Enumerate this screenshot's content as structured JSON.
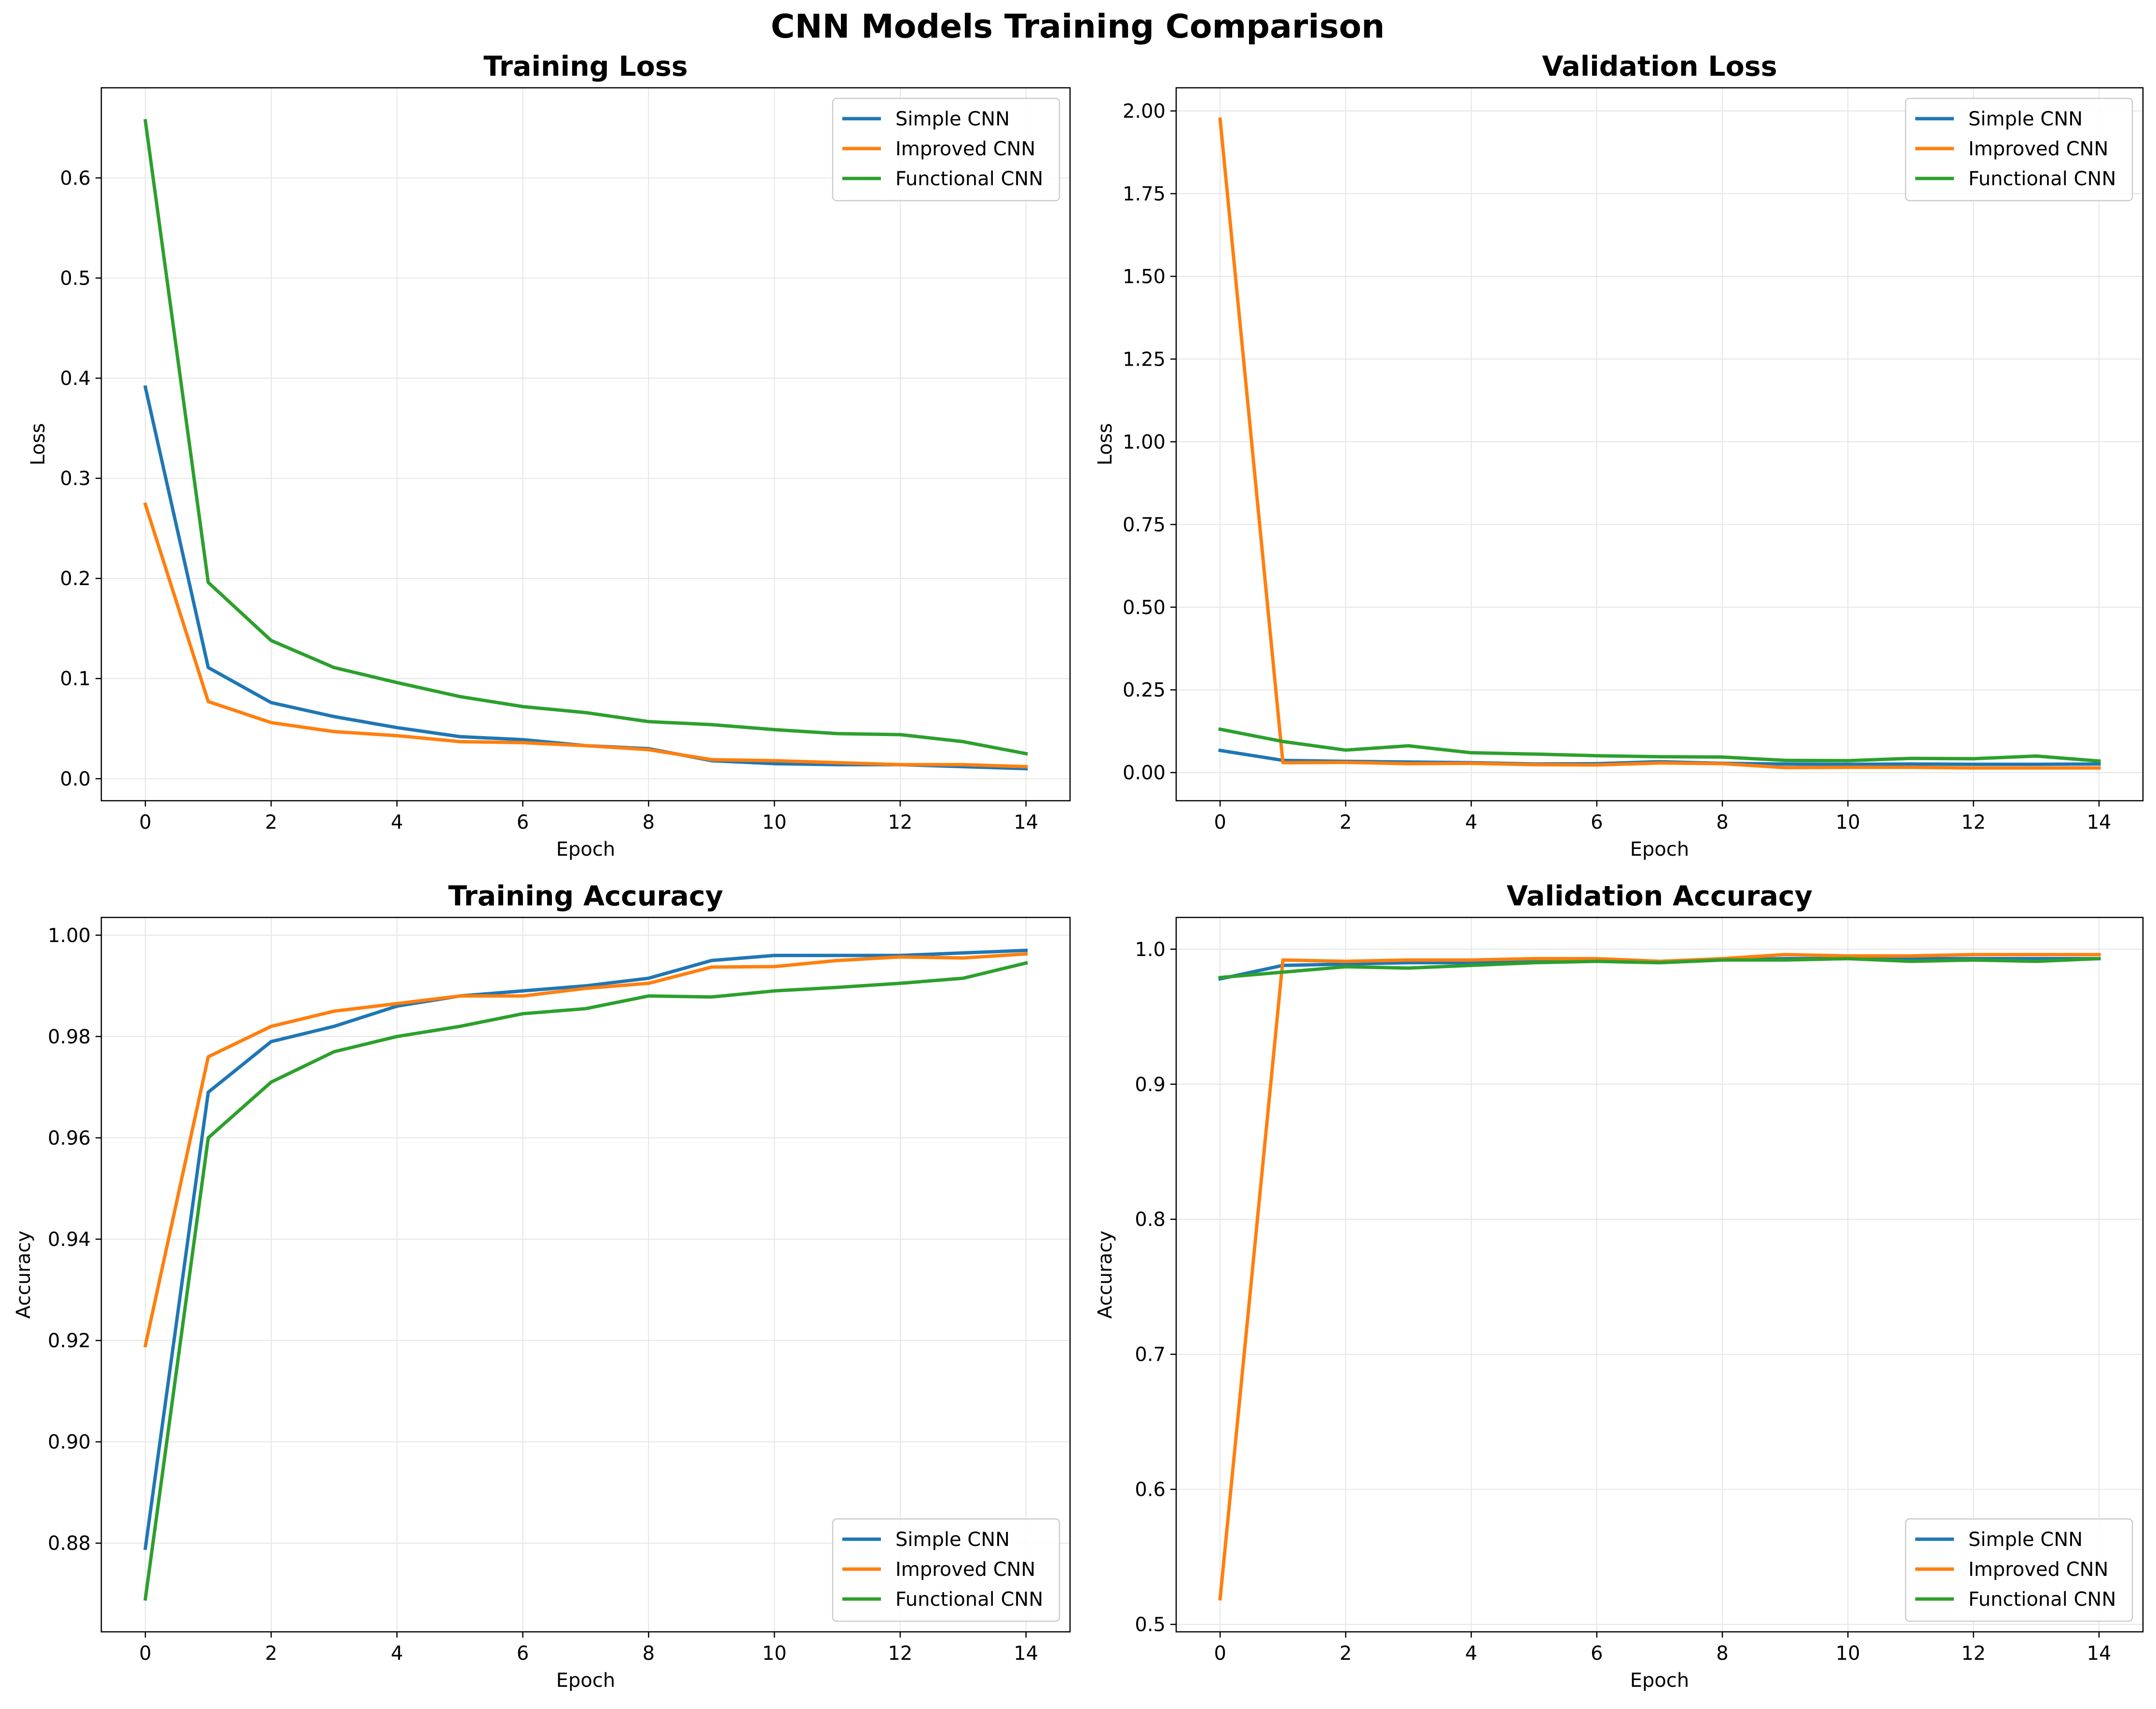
{
  "figure": {
    "title": "CNN Models Training Comparison"
  },
  "colors": {
    "simple": "#1f77b4",
    "improved": "#ff7f0e",
    "functional": "#2ca02c",
    "grid": "#e6e6e6"
  },
  "chart_data": [
    {
      "type": "line",
      "title": "Training Loss",
      "xlabel": "Epoch",
      "ylabel": "Loss",
      "xlim": [
        -0.7,
        14.7
      ],
      "ylim": [
        -0.022,
        0.69
      ],
      "xticks": [
        0,
        2,
        4,
        6,
        8,
        10,
        12,
        14
      ],
      "xtick_labels": [
        "0",
        "2",
        "4",
        "6",
        "8",
        "10",
        "12",
        "14"
      ],
      "yticks": [
        0.0,
        0.1,
        0.2,
        0.3,
        0.4,
        0.5,
        0.6
      ],
      "ytick_labels": [
        "0.0",
        "0.1",
        "0.2",
        "0.3",
        "0.4",
        "0.5",
        "0.6"
      ],
      "grid": true,
      "legend_position": "upper right",
      "x": [
        0,
        1,
        2,
        3,
        4,
        5,
        6,
        7,
        8,
        9,
        10,
        11,
        12,
        13,
        14
      ],
      "series": [
        {
          "name": "Simple CNN",
          "color": "#1f77b4",
          "values": [
            0.391,
            0.111,
            0.076,
            0.062,
            0.051,
            0.042,
            0.039,
            0.033,
            0.03,
            0.018,
            0.015,
            0.014,
            0.014,
            0.012,
            0.01
          ]
        },
        {
          "name": "Improved CNN",
          "color": "#ff7f0e",
          "values": [
            0.274,
            0.077,
            0.056,
            0.047,
            0.043,
            0.037,
            0.036,
            0.033,
            0.029,
            0.019,
            0.018,
            0.016,
            0.014,
            0.014,
            0.012
          ]
        },
        {
          "name": "Functional CNN",
          "color": "#2ca02c",
          "values": [
            0.657,
            0.196,
            0.138,
            0.111,
            0.096,
            0.082,
            0.072,
            0.066,
            0.057,
            0.054,
            0.049,
            0.045,
            0.044,
            0.037,
            0.025
          ]
        }
      ]
    },
    {
      "type": "line",
      "title": "Validation Loss",
      "xlabel": "Epoch",
      "ylabel": "Loss",
      "xlim": [
        -0.7,
        14.7
      ],
      "ylim": [
        -0.085,
        2.07
      ],
      "xticks": [
        0,
        2,
        4,
        6,
        8,
        10,
        12,
        14
      ],
      "xtick_labels": [
        "0",
        "2",
        "4",
        "6",
        "8",
        "10",
        "12",
        "14"
      ],
      "yticks": [
        0.0,
        0.25,
        0.5,
        0.75,
        1.0,
        1.25,
        1.5,
        1.75,
        2.0
      ],
      "ytick_labels": [
        "0.00",
        "0.25",
        "0.50",
        "0.75",
        "1.00",
        "1.25",
        "1.50",
        "1.75",
        "2.00"
      ],
      "grid": true,
      "legend_position": "upper right",
      "x": [
        0,
        1,
        2,
        3,
        4,
        5,
        6,
        7,
        8,
        9,
        10,
        11,
        12,
        13,
        14
      ],
      "series": [
        {
          "name": "Simple CNN",
          "color": "#1f77b4",
          "values": [
            0.067,
            0.037,
            0.034,
            0.032,
            0.03,
            0.026,
            0.027,
            0.033,
            0.028,
            0.026,
            0.025,
            0.026,
            0.025,
            0.025,
            0.026
          ]
        },
        {
          "name": "Improved CNN",
          "color": "#ff7f0e",
          "values": [
            1.975,
            0.03,
            0.031,
            0.027,
            0.028,
            0.024,
            0.023,
            0.029,
            0.027,
            0.015,
            0.016,
            0.016,
            0.014,
            0.014,
            0.014
          ]
        },
        {
          "name": "Functional CNN",
          "color": "#2ca02c",
          "values": [
            0.131,
            0.094,
            0.068,
            0.081,
            0.06,
            0.056,
            0.051,
            0.048,
            0.047,
            0.037,
            0.036,
            0.043,
            0.042,
            0.05,
            0.035
          ]
        }
      ]
    },
    {
      "type": "line",
      "title": "Training Accuracy",
      "xlabel": "Epoch",
      "ylabel": "Accuracy",
      "xlim": [
        -0.7,
        14.7
      ],
      "ylim": [
        0.8625,
        1.0035
      ],
      "xticks": [
        0,
        2,
        4,
        6,
        8,
        10,
        12,
        14
      ],
      "xtick_labels": [
        "0",
        "2",
        "4",
        "6",
        "8",
        "10",
        "12",
        "14"
      ],
      "yticks": [
        0.88,
        0.9,
        0.92,
        0.94,
        0.96,
        0.98,
        1.0
      ],
      "ytick_labels": [
        "0.88",
        "0.90",
        "0.92",
        "0.94",
        "0.96",
        "0.98",
        "1.00"
      ],
      "grid": true,
      "legend_position": "lower right",
      "x": [
        0,
        1,
        2,
        3,
        4,
        5,
        6,
        7,
        8,
        9,
        10,
        11,
        12,
        13,
        14
      ],
      "series": [
        {
          "name": "Simple CNN",
          "color": "#1f77b4",
          "values": [
            0.879,
            0.969,
            0.979,
            0.982,
            0.986,
            0.988,
            0.989,
            0.99,
            0.9915,
            0.995,
            0.996,
            0.996,
            0.996,
            0.9965,
            0.997
          ]
        },
        {
          "name": "Improved CNN",
          "color": "#ff7f0e",
          "values": [
            0.919,
            0.976,
            0.982,
            0.985,
            0.9865,
            0.988,
            0.988,
            0.9895,
            0.9905,
            0.9937,
            0.9938,
            0.995,
            0.9957,
            0.9955,
            0.9963
          ]
        },
        {
          "name": "Functional CNN",
          "color": "#2ca02c",
          "values": [
            0.869,
            0.96,
            0.971,
            0.977,
            0.98,
            0.982,
            0.9845,
            0.9855,
            0.988,
            0.9878,
            0.989,
            0.9897,
            0.9905,
            0.9915,
            0.9945
          ]
        }
      ]
    },
    {
      "type": "line",
      "title": "Validation Accuracy",
      "xlabel": "Epoch",
      "ylabel": "Accuracy",
      "xlim": [
        -0.7,
        14.7
      ],
      "ylim": [
        0.4945,
        1.0235
      ],
      "xticks": [
        0,
        2,
        4,
        6,
        8,
        10,
        12,
        14
      ],
      "xtick_labels": [
        "0",
        "2",
        "4",
        "6",
        "8",
        "10",
        "12",
        "14"
      ],
      "yticks": [
        0.5,
        0.6,
        0.7,
        0.8,
        0.9,
        1.0
      ],
      "ytick_labels": [
        "0.5",
        "0.6",
        "0.7",
        "0.8",
        "0.9",
        "1.0"
      ],
      "grid": true,
      "legend_position": "lower right",
      "x": [
        0,
        1,
        2,
        3,
        4,
        5,
        6,
        7,
        8,
        9,
        10,
        11,
        12,
        13,
        14
      ],
      "series": [
        {
          "name": "Simple CNN",
          "color": "#1f77b4",
          "values": [
            0.978,
            0.988,
            0.989,
            0.99,
            0.99,
            0.991,
            0.992,
            0.99,
            0.992,
            0.993,
            0.993,
            0.993,
            0.993,
            0.993,
            0.993
          ]
        },
        {
          "name": "Improved CNN",
          "color": "#ff7f0e",
          "values": [
            0.519,
            0.992,
            0.991,
            0.992,
            0.992,
            0.993,
            0.993,
            0.991,
            0.993,
            0.996,
            0.995,
            0.995,
            0.996,
            0.996,
            0.996
          ]
        },
        {
          "name": "Functional CNN",
          "color": "#2ca02c",
          "values": [
            0.979,
            0.983,
            0.987,
            0.986,
            0.988,
            0.99,
            0.991,
            0.99,
            0.992,
            0.992,
            0.993,
            0.991,
            0.992,
            0.991,
            0.993
          ]
        }
      ]
    }
  ]
}
